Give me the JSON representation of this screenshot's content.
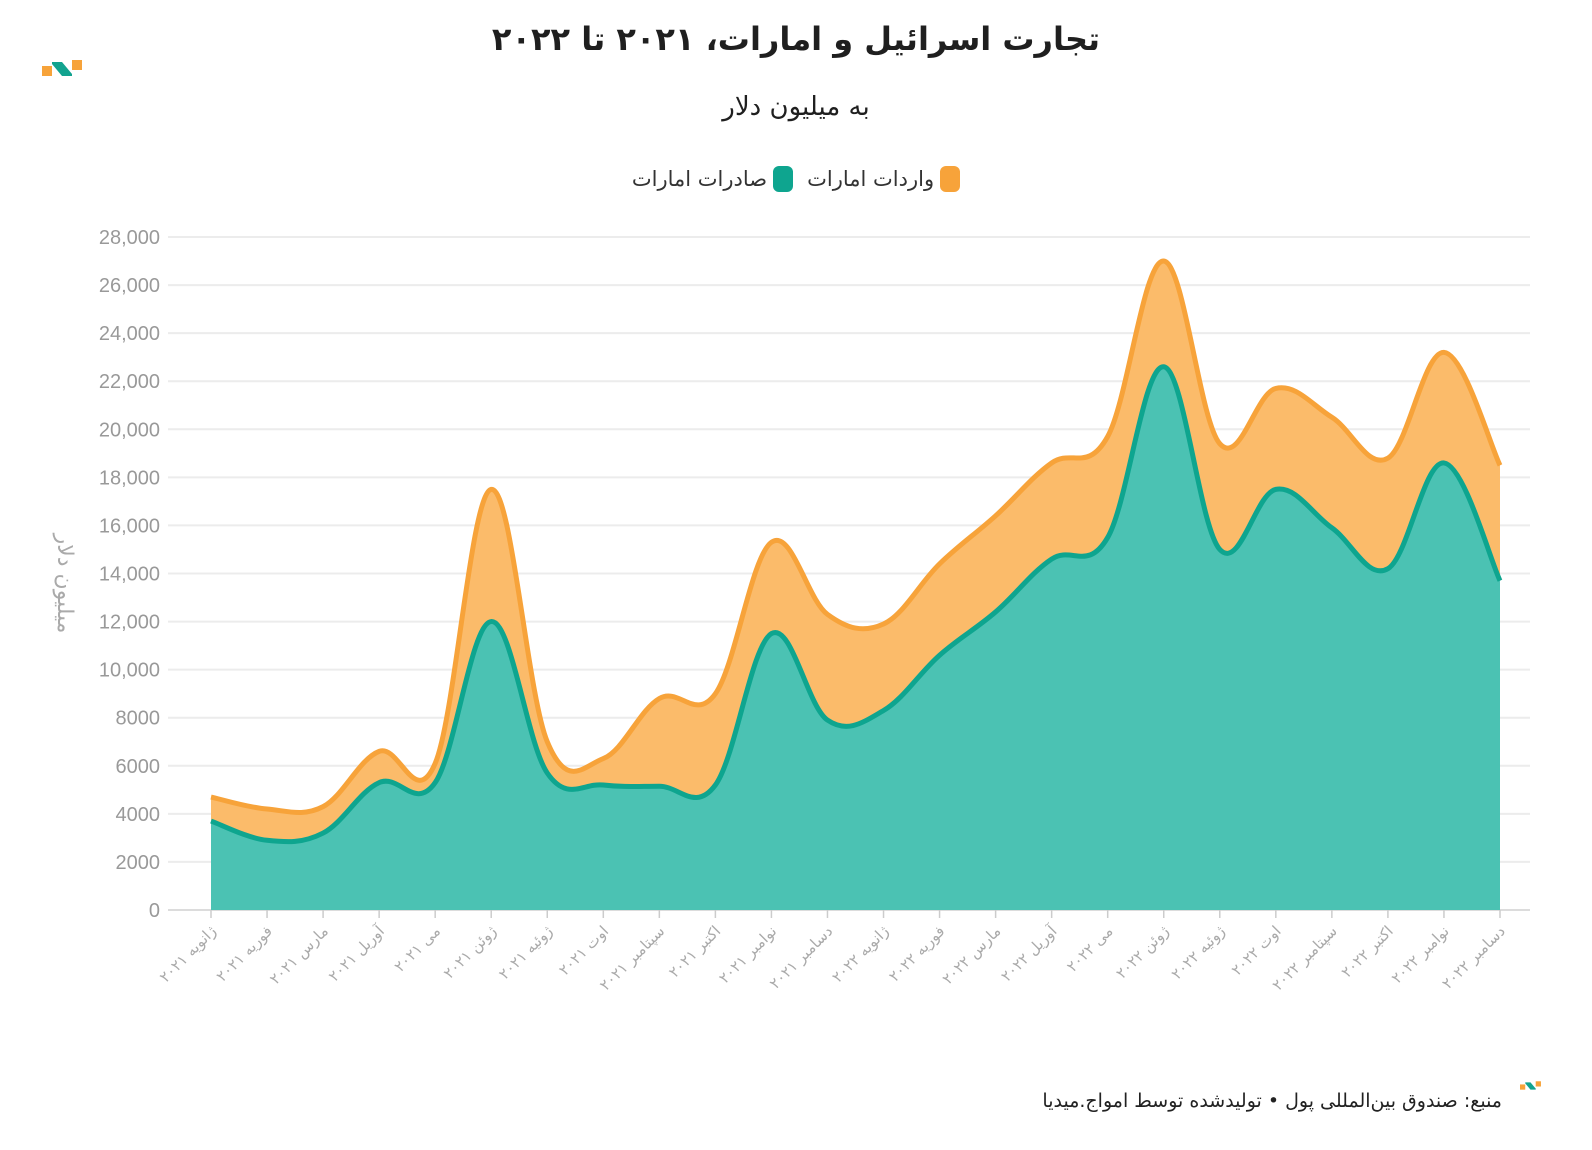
{
  "header": {
    "title": "تجارت اسرائیل و امارات، ۲۰۲۱ تا ۲۰۲۲",
    "subtitle": "به میلیون دلار"
  },
  "legend": {
    "imports_label": "واردات امارات",
    "exports_label": "صادرات امارات"
  },
  "footer": {
    "source": "منبع: صندوق بین‌المللی پول • تولیدشده توسط امواج.میدیا"
  },
  "colors": {
    "imports": "#F7A33A",
    "imports_fill": "#FBBB6A",
    "exports": "#0EA58F",
    "exports_fill": "#4BC2B3",
    "logo_teal": "#12A38F",
    "logo_orange": "#F7A33A"
  },
  "chart_data": {
    "type": "area",
    "stacked": true,
    "ylabel": "میلیون دلار",
    "ylim": [
      0,
      28000
    ],
    "yticks": [
      0,
      2000,
      4000,
      6000,
      8000,
      10000,
      12000,
      14000,
      16000,
      18000,
      20000,
      22000,
      24000,
      26000,
      28000
    ],
    "ytick_labels": [
      "0",
      "2000",
      "4000",
      "6000",
      "8000",
      "10,000",
      "12,000",
      "14,000",
      "16,000",
      "18,000",
      "20,000",
      "22,000",
      "24,000",
      "26,000",
      "28,000"
    ],
    "grid": true,
    "legend_position": "top-center",
    "categories": [
      "ژانویه ۲۰۲۱",
      "فوریه ۲۰۲۱",
      "مارس ۲۰۲۱",
      "آوریل ۲۰۲۱",
      "می ۲۰۲۱",
      "ژوئن ۲۰۲۱",
      "ژوئیه ۲۰۲۱",
      "اوت ۲۰۲۱",
      "سپتامبر ۲۰۲۱",
      "اکتبر ۲۰۲۱",
      "نوامبر ۲۰۲۱",
      "دسامبر ۲۰۲۱",
      "ژانویه ۲۰۲۲",
      "فوریه ۲۰۲۲",
      "مارس ۲۰۲۲",
      "آوریل ۲۰۲۲",
      "می ۲۰۲۲",
      "ژوئن ۲۰۲۲",
      "ژوئیه ۲۰۲۲",
      "اوت ۲۰۲۲",
      "سپتامبر ۲۰۲۲",
      "اکتبر ۲۰۲۲",
      "نوامبر ۲۰۲۲",
      "دسامبر ۲۰۲۲"
    ],
    "series": [
      {
        "name": "صادرات امارات",
        "values": [
          3700,
          2900,
          3200,
          5300,
          5300,
          12000,
          5700,
          5200,
          5150,
          5200,
          11500,
          7900,
          8300,
          10600,
          12400,
          14600,
          15500,
          22600,
          15000,
          17500,
          15900,
          14200,
          18600,
          13700
        ]
      },
      {
        "name": "واردات امارات",
        "values": [
          1000,
          1300,
          1100,
          1300,
          800,
          5500,
          1300,
          1100,
          3650,
          3800,
          3800,
          4400,
          3600,
          3800,
          4000,
          4000,
          4200,
          4400,
          4400,
          4200,
          4600,
          4600,
          4600,
          4800
        ]
      }
    ],
    "totals": [
      4700,
      4200,
      4300,
      6600,
      6100,
      17500,
      7000,
      6300,
      8800,
      9000,
      15300,
      12300,
      11900,
      14400,
      16400,
      18600,
      19700,
      27000,
      19400,
      21700,
      20500,
      18800,
      23200,
      18500
    ]
  }
}
